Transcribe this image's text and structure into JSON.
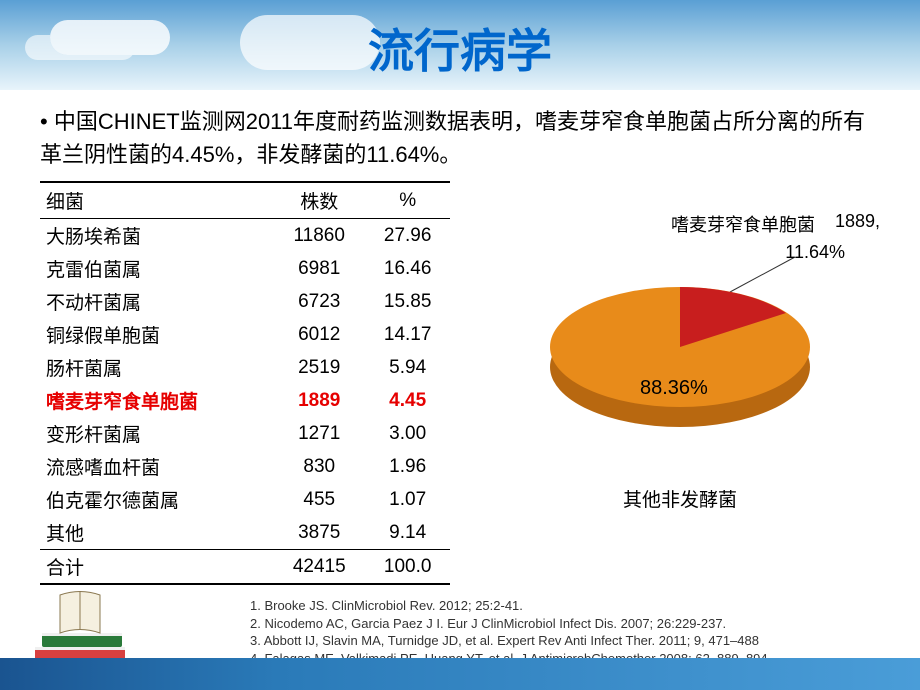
{
  "title": "流行病学",
  "bullet": "• 中国CHINET监测网2011年度耐药监测数据表明，嗜麦芽窄食单胞菌占所分离的所有革兰阴性菌的4.45%，非发酵菌的11.64%。",
  "table": {
    "headers": [
      "细菌",
      "株数",
      "%"
    ],
    "rows": [
      {
        "cells": [
          "大肠埃希菌",
          "11860",
          "27.96"
        ],
        "highlight": false
      },
      {
        "cells": [
          "克雷伯菌属",
          "6981",
          "16.46"
        ],
        "highlight": false
      },
      {
        "cells": [
          "不动杆菌属",
          "6723",
          "15.85"
        ],
        "highlight": false
      },
      {
        "cells": [
          "铜绿假单胞菌",
          "6012",
          "14.17"
        ],
        "highlight": false
      },
      {
        "cells": [
          "肠杆菌属",
          "2519",
          "5.94"
        ],
        "highlight": false
      },
      {
        "cells": [
          "嗜麦芽窄食单胞菌",
          "1889",
          "4.45"
        ],
        "highlight": true
      },
      {
        "cells": [
          "变形杆菌属",
          "1271",
          "3.00"
        ],
        "highlight": false
      },
      {
        "cells": [
          "流感嗜血杆菌",
          "830",
          "1.96"
        ],
        "highlight": false
      },
      {
        "cells": [
          "伯克霍尔德菌属",
          "455",
          "1.07"
        ],
        "highlight": false
      },
      {
        "cells": [
          "其他",
          "3875",
          "9.14"
        ],
        "highlight": false
      }
    ],
    "total": [
      "合计",
      "42415",
      "100.0"
    ]
  },
  "pie": {
    "label_small": "嗜麦芽窄食单胞菌",
    "label_count": "1889,",
    "pct_small": "11.64%",
    "pct_main": "88.36%",
    "label_bottom": "其他非发酵菌",
    "color_small": "#c81e1e",
    "color_main": "#e88b1a",
    "color_side": "#b86810"
  },
  "refs": [
    "1. Brooke JS. ClinMicrobiol Rev. 2012; 25:2-41.",
    "2. Nicodemo AC, Garcia Paez J I. Eur J ClinMicrobiol Infect Dis. 2007; 26:229-237.",
    "3. Abbott IJ, Slavin MA, Turnidge JD, et al. Expert Rev Anti Infect Ther. 2011; 9, 471–488",
    "4. Falagas ME, Valkimadi PE, Huang YT, et al. J AntimicrobChemother 2008; 62, 889–894"
  ]
}
